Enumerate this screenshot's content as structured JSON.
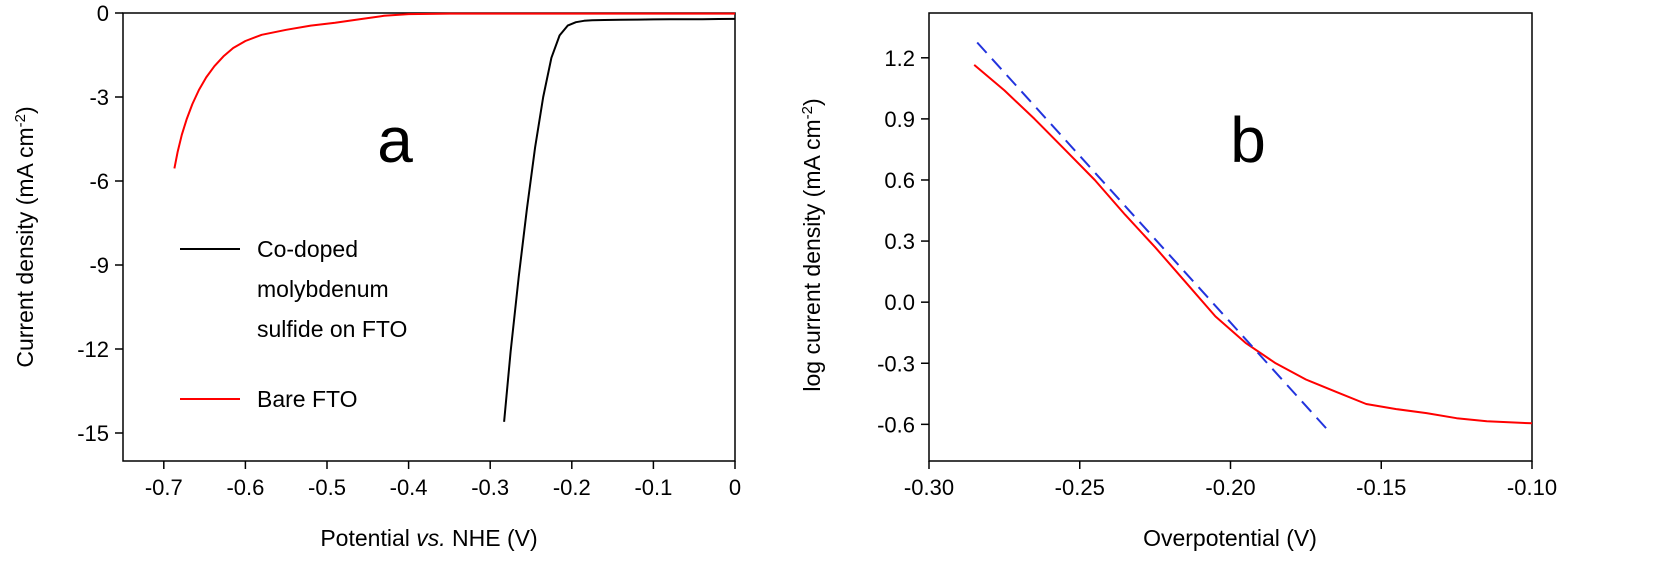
{
  "figure": {
    "panels": [
      {
        "label": "a",
        "xlabel_prefix": "Potential ",
        "xlabel_italic": "vs.",
        "xlabel_suffix": " NHE (V)",
        "ylabel_main": "Current density (mA cm",
        "ylabel_sup": "-2",
        "ylabel_close": ")",
        "legend": [
          {
            "lines": [
              "Co-doped",
              "molybdenum",
              "sulfide on FTO"
            ],
            "color": "#000000"
          },
          {
            "lines": [
              "Bare FTO"
            ],
            "color": "#ff0000"
          }
        ]
      },
      {
        "label": "b",
        "xlabel": "Overpotential (V)",
        "ylabel_main": "log current density (mA cm",
        "ylabel_sup": "-2",
        "ylabel_close": ")"
      }
    ]
  },
  "chart_data": [
    {
      "type": "line",
      "xlim": [
        -0.75,
        0
      ],
      "ylim": [
        -16,
        0
      ],
      "xticks": [
        -0.7,
        -0.6,
        -0.5,
        -0.4,
        -0.3,
        -0.2,
        -0.1,
        0
      ],
      "xtick_labels": [
        "-0.7",
        "-0.6",
        "-0.5",
        "-0.4",
        "-0.3",
        "-0.2",
        "-0.1",
        "0"
      ],
      "yticks": [
        0,
        -3,
        -6,
        -9,
        -12,
        -15
      ],
      "ytick_labels": [
        "0",
        "-3",
        "-6",
        "-9",
        "-12",
        "-15"
      ],
      "grid": false,
      "legend_placement": "left",
      "series": [
        {
          "name": "Co-doped molybdenum sulfide on FTO",
          "color": "#000000",
          "x": [
            -0.283,
            -0.275,
            -0.265,
            -0.255,
            -0.245,
            -0.235,
            -0.225,
            -0.215,
            -0.205,
            -0.195,
            -0.185,
            -0.175,
            -0.16,
            -0.14,
            -0.12,
            -0.1,
            -0.08,
            -0.06,
            -0.04,
            -0.02,
            0.0
          ],
          "y": [
            -14.6,
            -12.1,
            -9.4,
            -7.0,
            -4.8,
            -3.0,
            -1.6,
            -0.8,
            -0.45,
            -0.33,
            -0.28,
            -0.26,
            -0.25,
            -0.24,
            -0.235,
            -0.23,
            -0.225,
            -0.22,
            -0.22,
            -0.215,
            -0.21
          ]
        },
        {
          "name": "Bare FTO",
          "color": "#ff0000",
          "x": [
            -0.687,
            -0.683,
            -0.678,
            -0.672,
            -0.665,
            -0.657,
            -0.648,
            -0.638,
            -0.627,
            -0.615,
            -0.6,
            -0.58,
            -0.55,
            -0.52,
            -0.49,
            -0.46,
            -0.43,
            -0.4,
            -0.35,
            -0.3,
            -0.2,
            -0.1,
            0.0
          ],
          "y": [
            -5.55,
            -4.95,
            -4.35,
            -3.8,
            -3.25,
            -2.75,
            -2.3,
            -1.9,
            -1.55,
            -1.25,
            -1.0,
            -0.78,
            -0.6,
            -0.45,
            -0.35,
            -0.22,
            -0.1,
            -0.04,
            -0.02,
            -0.02,
            -0.02,
            -0.02,
            -0.02
          ]
        }
      ]
    },
    {
      "type": "line",
      "xlim": [
        -0.3,
        -0.1
      ],
      "ylim": [
        -0.78,
        1.42
      ],
      "xticks": [
        -0.3,
        -0.25,
        -0.2,
        -0.15,
        -0.1
      ],
      "xtick_labels": [
        "-0.30",
        "-0.25",
        "-0.20",
        "-0.15",
        "-0.10"
      ],
      "yticks": [
        1.2,
        0.9,
        0.6,
        0.3,
        0.0,
        -0.3,
        -0.6
      ],
      "ytick_labels": [
        "1.2",
        "0.9",
        "0.6",
        "0.3",
        "0.0",
        "-0.3",
        "-0.6"
      ],
      "grid": false,
      "series": [
        {
          "color": "#ff0000",
          "style": "solid",
          "x": [
            -0.285,
            -0.275,
            -0.265,
            -0.255,
            -0.245,
            -0.235,
            -0.225,
            -0.215,
            -0.205,
            -0.195,
            -0.185,
            -0.175,
            -0.165,
            -0.155,
            -0.145,
            -0.135,
            -0.125,
            -0.115,
            -0.1
          ],
          "y": [
            1.165,
            1.04,
            0.9,
            0.75,
            0.6,
            0.43,
            0.27,
            0.1,
            -0.07,
            -0.2,
            -0.3,
            -0.38,
            -0.44,
            -0.5,
            -0.525,
            -0.545,
            -0.57,
            -0.585,
            -0.595
          ]
        },
        {
          "color": "#2233dd",
          "style": "dashed",
          "x": [
            -0.284,
            -0.167
          ],
          "y": [
            1.275,
            -0.64
          ]
        }
      ]
    }
  ]
}
